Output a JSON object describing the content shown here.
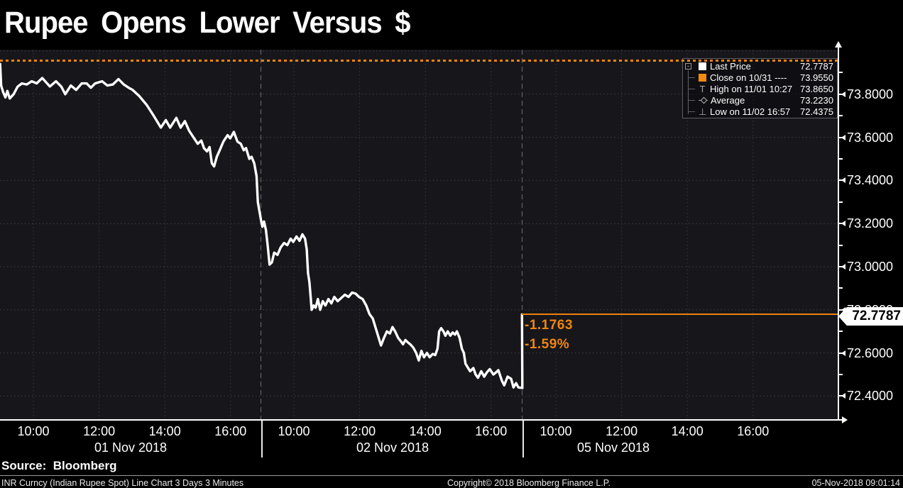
{
  "title": "Rupee Opens Lower Versus $",
  "legend": {
    "rows": [
      {
        "icon": "last-price-swatch",
        "label": "Last Price",
        "value": "72.7787"
      },
      {
        "icon": "close-swatch",
        "label": "Close on 10/31 ----",
        "value": "73.9550"
      },
      {
        "icon": "high-marker",
        "label": "High on 11/01 10:27",
        "value": "73.8650"
      },
      {
        "icon": "average-marker",
        "label": "Average",
        "value": "73.2230"
      },
      {
        "icon": "low-marker",
        "label": "Low on 11/02 16:57",
        "value": "72.4375"
      }
    ],
    "expander_glyph": "-"
  },
  "annotations": {
    "change_abs": "-1.1763",
    "change_pct": "-1.59%"
  },
  "price_tag": "72.7787",
  "y_axis": {
    "labels": [
      "73.8000",
      "73.6000",
      "73.4000",
      "73.2000",
      "73.0000",
      "72.8000",
      "72.6000",
      "72.4000"
    ]
  },
  "x_axis": {
    "days": [
      {
        "label": "01 Nov 2018",
        "hours": [
          "10:00",
          "12:00",
          "14:00",
          "16:00"
        ]
      },
      {
        "label": "02 Nov 2018",
        "hours": [
          "10:00",
          "12:00",
          "14:00",
          "16:00"
        ]
      },
      {
        "label": "05 Nov 2018",
        "hours": [
          "10:00",
          "12:00",
          "14:00",
          "16:00"
        ]
      }
    ]
  },
  "source_label": "Source:  Bloomberg",
  "footer": {
    "left": "INR Curncy (Indian Rupee Spot) Line Chart 3 Days 3 Minutes",
    "center": "Copyright© 2018 Bloomberg Finance L.P.",
    "right": "05-Nov-2018 09:01:14"
  },
  "colors": {
    "accent_orange": "#f0860f",
    "line_white": "#ffffff",
    "plot_bg": "#17171b",
    "grid": "#3e3e46",
    "divider": "#5b5b63"
  },
  "chart_data": {
    "type": "line",
    "title": "Rupee Opens Lower Versus $",
    "instrument": "INR Curncy (Indian Rupee Spot)",
    "interval": "3 Days 3 Minutes",
    "ylim": [
      72.3,
      74.0
    ],
    "y_grid_step": 0.2,
    "grid": true,
    "legend_position": "top-right",
    "last_price": 72.7787,
    "prev_close": 73.955,
    "average": 73.223,
    "high": {
      "date": "11/01",
      "time": "10:27",
      "value": 73.865
    },
    "low": {
      "date": "11/02",
      "time": "16:57",
      "value": 72.4375
    },
    "change_abs": -1.1763,
    "change_pct": -1.59,
    "days": [
      "01 Nov 2018",
      "02 Nov 2018",
      "05 Nov 2018"
    ],
    "series": [
      {
        "name": "Last Price",
        "points_format": [
          "day_index",
          "hour_decimal",
          "price"
        ],
        "points": [
          [
            1,
            8.99,
            73.94
          ],
          [
            1,
            9.02,
            73.84
          ],
          [
            1,
            9.08,
            73.81
          ],
          [
            1,
            9.15,
            73.785
          ],
          [
            1,
            9.21,
            73.815
          ],
          [
            1,
            9.28,
            73.78
          ],
          [
            1,
            9.4,
            73.8
          ],
          [
            1,
            9.52,
            73.835
          ],
          [
            1,
            9.65,
            73.85
          ],
          [
            1,
            9.8,
            73.845
          ],
          [
            1,
            9.95,
            73.86
          ],
          [
            1,
            10.1,
            73.85
          ],
          [
            1,
            10.27,
            73.875
          ],
          [
            1,
            10.5,
            73.836
          ],
          [
            1,
            10.69,
            73.86
          ],
          [
            1,
            10.85,
            73.835
          ],
          [
            1,
            10.97,
            73.8
          ],
          [
            1,
            11.14,
            73.84
          ],
          [
            1,
            11.3,
            73.82
          ],
          [
            1,
            11.47,
            73.85
          ],
          [
            1,
            11.62,
            73.85
          ],
          [
            1,
            11.75,
            73.83
          ],
          [
            1,
            11.88,
            73.85
          ],
          [
            1,
            12.09,
            73.86
          ],
          [
            1,
            12.25,
            73.84
          ],
          [
            1,
            12.42,
            73.845
          ],
          [
            1,
            12.59,
            73.87
          ],
          [
            1,
            12.75,
            73.845
          ],
          [
            1,
            12.9,
            73.83
          ],
          [
            1,
            13.02,
            73.82
          ],
          [
            1,
            13.23,
            73.79
          ],
          [
            1,
            13.45,
            73.75
          ],
          [
            1,
            13.66,
            73.7
          ],
          [
            1,
            13.88,
            73.645
          ],
          [
            1,
            14.03,
            73.68
          ],
          [
            1,
            14.16,
            73.645
          ],
          [
            1,
            14.35,
            73.69
          ],
          [
            1,
            14.48,
            73.645
          ],
          [
            1,
            14.61,
            73.675
          ],
          [
            1,
            14.74,
            73.63
          ],
          [
            1,
            14.87,
            73.6
          ],
          [
            1,
            15.0,
            73.57
          ],
          [
            1,
            15.11,
            73.585
          ],
          [
            1,
            15.19,
            73.55
          ],
          [
            1,
            15.28,
            73.535
          ],
          [
            1,
            15.36,
            73.555
          ],
          [
            1,
            15.43,
            73.48
          ],
          [
            1,
            15.5,
            73.465
          ],
          [
            1,
            15.58,
            73.51
          ],
          [
            1,
            15.67,
            73.54
          ],
          [
            1,
            15.78,
            73.58
          ],
          [
            1,
            15.91,
            73.61
          ],
          [
            1,
            15.99,
            73.595
          ],
          [
            1,
            16.1,
            73.625
          ],
          [
            1,
            16.21,
            73.58
          ],
          [
            1,
            16.31,
            73.57
          ],
          [
            1,
            16.4,
            73.54
          ],
          [
            1,
            16.47,
            73.55
          ],
          [
            1,
            16.57,
            73.5
          ],
          [
            1,
            16.64,
            73.51
          ],
          [
            1,
            16.72,
            73.48
          ],
          [
            1,
            16.79,
            73.42
          ],
          [
            1,
            16.83,
            73.3
          ],
          [
            2,
            9.0,
            73.215
          ],
          [
            2,
            9.04,
            73.185
          ],
          [
            2,
            9.09,
            73.21
          ],
          [
            2,
            9.15,
            73.17
          ],
          [
            2,
            9.2,
            73.1
          ],
          [
            2,
            9.26,
            73.01
          ],
          [
            2,
            9.33,
            73.02
          ],
          [
            2,
            9.4,
            73.065
          ],
          [
            2,
            9.5,
            73.055
          ],
          [
            2,
            9.6,
            73.09
          ],
          [
            2,
            9.7,
            73.11
          ],
          [
            2,
            9.8,
            73.1
          ],
          [
            2,
            9.9,
            73.13
          ],
          [
            2,
            9.98,
            73.115
          ],
          [
            2,
            10.08,
            73.14
          ],
          [
            2,
            10.17,
            73.12
          ],
          [
            2,
            10.26,
            73.15
          ],
          [
            2,
            10.34,
            73.13
          ],
          [
            2,
            10.39,
            73.08
          ],
          [
            2,
            10.43,
            72.97
          ],
          [
            2,
            10.47,
            72.93
          ],
          [
            2,
            10.5,
            72.88
          ],
          [
            2,
            10.54,
            72.8
          ],
          [
            2,
            10.6,
            72.82
          ],
          [
            2,
            10.66,
            72.81
          ],
          [
            2,
            10.73,
            72.85
          ],
          [
            2,
            10.8,
            72.8
          ],
          [
            2,
            10.88,
            72.84
          ],
          [
            2,
            10.96,
            72.82
          ],
          [
            2,
            11.05,
            72.85
          ],
          [
            2,
            11.14,
            72.83
          ],
          [
            2,
            11.23,
            72.86
          ],
          [
            2,
            11.33,
            72.84
          ],
          [
            2,
            11.44,
            72.855
          ],
          [
            2,
            11.55,
            72.87
          ],
          [
            2,
            11.66,
            72.86
          ],
          [
            2,
            11.77,
            72.88
          ],
          [
            2,
            11.88,
            72.875
          ],
          [
            2,
            11.98,
            72.86
          ],
          [
            2,
            12.09,
            72.85
          ],
          [
            2,
            12.2,
            72.82
          ],
          [
            2,
            12.3,
            72.78
          ],
          [
            2,
            12.4,
            72.76
          ],
          [
            2,
            12.48,
            72.72
          ],
          [
            2,
            12.56,
            72.68
          ],
          [
            2,
            12.65,
            72.635
          ],
          [
            2,
            12.74,
            72.67
          ],
          [
            2,
            12.83,
            72.7
          ],
          [
            2,
            12.92,
            72.69
          ],
          [
            2,
            13.0,
            72.72
          ],
          [
            2,
            13.08,
            72.7
          ],
          [
            2,
            13.17,
            72.67
          ],
          [
            2,
            13.25,
            72.655
          ],
          [
            2,
            13.32,
            72.64
          ],
          [
            2,
            13.39,
            72.66
          ],
          [
            2,
            13.46,
            72.65
          ],
          [
            2,
            13.54,
            72.64
          ],
          [
            2,
            13.63,
            72.625
          ],
          [
            2,
            13.72,
            72.6
          ],
          [
            2,
            13.8,
            72.565
          ],
          [
            2,
            13.88,
            72.61
          ],
          [
            2,
            13.96,
            72.58
          ],
          [
            2,
            14.05,
            72.6
          ],
          [
            2,
            14.13,
            72.58
          ],
          [
            2,
            14.22,
            72.595
          ],
          [
            2,
            14.3,
            72.59
          ],
          [
            2,
            14.37,
            72.62
          ],
          [
            2,
            14.42,
            72.7
          ],
          [
            2,
            14.48,
            72.715
          ],
          [
            2,
            14.55,
            72.7
          ],
          [
            2,
            14.61,
            72.68
          ],
          [
            2,
            14.68,
            72.7
          ],
          [
            2,
            14.76,
            72.68
          ],
          [
            2,
            14.83,
            72.695
          ],
          [
            2,
            14.9,
            72.685
          ],
          [
            2,
            14.96,
            72.7
          ],
          [
            2,
            15.04,
            72.67
          ],
          [
            2,
            15.11,
            72.62
          ],
          [
            2,
            15.17,
            72.6
          ],
          [
            2,
            15.22,
            72.55
          ],
          [
            2,
            15.28,
            72.535
          ],
          [
            2,
            15.36,
            72.515
          ],
          [
            2,
            15.46,
            72.53
          ],
          [
            2,
            15.53,
            72.5
          ],
          [
            2,
            15.6,
            72.485
          ],
          [
            2,
            15.7,
            72.515
          ],
          [
            2,
            15.79,
            72.49
          ],
          [
            2,
            15.87,
            72.51
          ],
          [
            2,
            15.96,
            72.525
          ],
          [
            2,
            16.07,
            72.5
          ],
          [
            2,
            16.15,
            72.51
          ],
          [
            2,
            16.22,
            72.52
          ],
          [
            2,
            16.33,
            72.47
          ],
          [
            2,
            16.4,
            72.45
          ],
          [
            2,
            16.5,
            72.49
          ],
          [
            2,
            16.61,
            72.48
          ],
          [
            2,
            16.68,
            72.44
          ],
          [
            2,
            16.76,
            72.46
          ],
          [
            2,
            16.83,
            72.44
          ],
          [
            2,
            16.95,
            72.4375
          ],
          [
            3,
            8.97,
            72.7787
          ]
        ]
      }
    ]
  }
}
